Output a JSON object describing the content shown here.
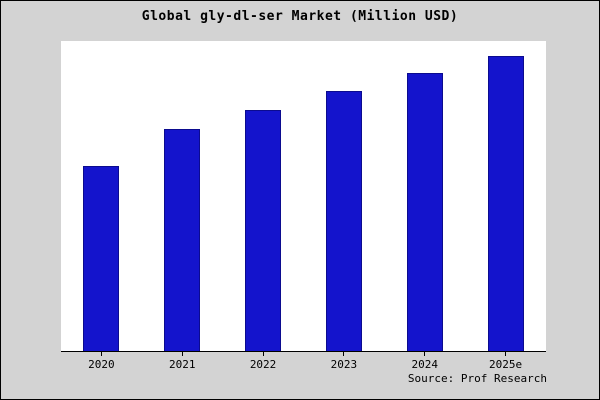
{
  "title": "Global gly-dl-ser Market (Million USD)",
  "source": "Source: Prof Research",
  "colors": {
    "bar": "#1414cc",
    "bar_edge": "#0b0b8f",
    "background": "#d3d3d3",
    "plot_background": "#ffffff",
    "axis": "#000000"
  },
  "chart_data": {
    "type": "bar",
    "title": "Global gly-dl-ser Market (Million USD)",
    "categories": [
      "2020",
      "2021",
      "2022",
      "2023",
      "2024",
      "2025e"
    ],
    "values": [
      62.5,
      75.3,
      81.6,
      88,
      94,
      100
    ],
    "xlabel": "",
    "ylabel": "",
    "ylim": [
      0,
      105
    ],
    "grid": false,
    "legend": false,
    "y_axis_labels_visible": false,
    "bar_color": "#1414cc"
  }
}
